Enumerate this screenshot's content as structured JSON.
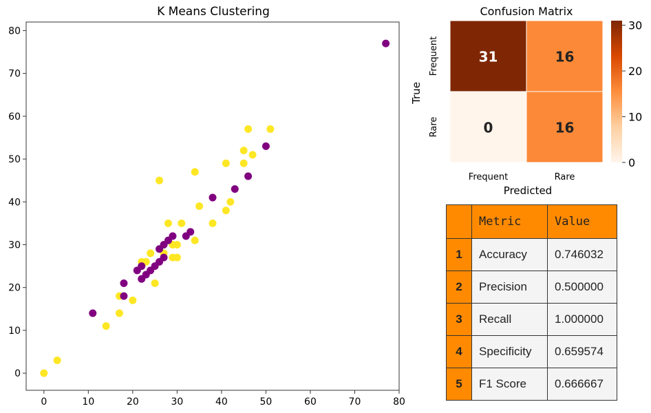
{
  "chart_data": [
    {
      "type": "scatter",
      "title": "K Means Clustering",
      "xlabel": "",
      "ylabel": "",
      "xlim": [
        -4,
        80
      ],
      "ylim": [
        -4,
        82
      ],
      "x_ticks": [
        0,
        10,
        20,
        30,
        40,
        50,
        60,
        70,
        80
      ],
      "y_ticks": [
        0,
        10,
        20,
        30,
        40,
        50,
        60,
        70,
        80
      ],
      "grid": false,
      "colors": {
        "cluster_0": "#fde725",
        "cluster_1": "#800080"
      },
      "series": [
        {
          "name": "cluster_0",
          "points": [
            [
              0,
              0
            ],
            [
              3,
              3
            ],
            [
              14,
              11
            ],
            [
              17,
              14
            ],
            [
              17,
              18
            ],
            [
              20,
              17
            ],
            [
              22,
              26
            ],
            [
              23,
              26
            ],
            [
              24,
              28
            ],
            [
              25,
              21
            ],
            [
              26,
              45
            ],
            [
              27,
              28
            ],
            [
              28,
              35
            ],
            [
              29,
              27
            ],
            [
              29,
              30
            ],
            [
              30,
              27
            ],
            [
              30,
              30
            ],
            [
              31,
              35
            ],
            [
              34,
              31
            ],
            [
              34,
              47
            ],
            [
              35,
              39
            ],
            [
              38,
              35
            ],
            [
              41,
              38
            ],
            [
              41,
              49
            ],
            [
              42,
              40
            ],
            [
              45,
              49
            ],
            [
              45,
              52
            ],
            [
              46,
              57
            ],
            [
              47,
              51
            ],
            [
              51,
              57
            ]
          ]
        },
        {
          "name": "cluster_1",
          "points": [
            [
              11,
              14
            ],
            [
              18,
              18
            ],
            [
              18,
              21
            ],
            [
              21,
              24
            ],
            [
              22,
              22
            ],
            [
              22,
              25
            ],
            [
              23,
              23
            ],
            [
              24,
              24
            ],
            [
              25,
              25
            ],
            [
              26,
              26
            ],
            [
              26,
              29
            ],
            [
              27,
              27
            ],
            [
              27,
              30
            ],
            [
              28,
              31
            ],
            [
              29,
              32
            ],
            [
              32,
              32
            ],
            [
              33,
              33
            ],
            [
              38,
              41
            ],
            [
              43,
              43
            ],
            [
              46,
              46
            ],
            [
              50,
              53
            ],
            [
              77,
              77
            ]
          ]
        }
      ]
    },
    {
      "type": "heatmap",
      "title": "Confusion Matrix",
      "xlabel": "Predicted",
      "ylabel": "True",
      "x_categories": [
        "Frequent",
        "Rare"
      ],
      "y_categories": [
        "Frequent",
        "Rare"
      ],
      "values": [
        [
          31,
          16
        ],
        [
          0,
          16
        ]
      ],
      "colorbar_range": [
        0,
        31
      ],
      "colorbar_ticks": [
        0,
        10,
        20,
        30
      ],
      "colormap": "Oranges"
    }
  ],
  "metrics_table": {
    "headers": [
      "",
      "Metric",
      "Value"
    ],
    "rows": [
      {
        "index": "1",
        "metric": "Accuracy",
        "value": "0.746032"
      },
      {
        "index": "2",
        "metric": "Precision",
        "value": "0.500000"
      },
      {
        "index": "3",
        "metric": "Recall",
        "value": "1.000000"
      },
      {
        "index": "4",
        "metric": "Specificity",
        "value": "0.659574"
      },
      {
        "index": "5",
        "metric": "F1 Score",
        "value": "0.666667"
      }
    ]
  }
}
